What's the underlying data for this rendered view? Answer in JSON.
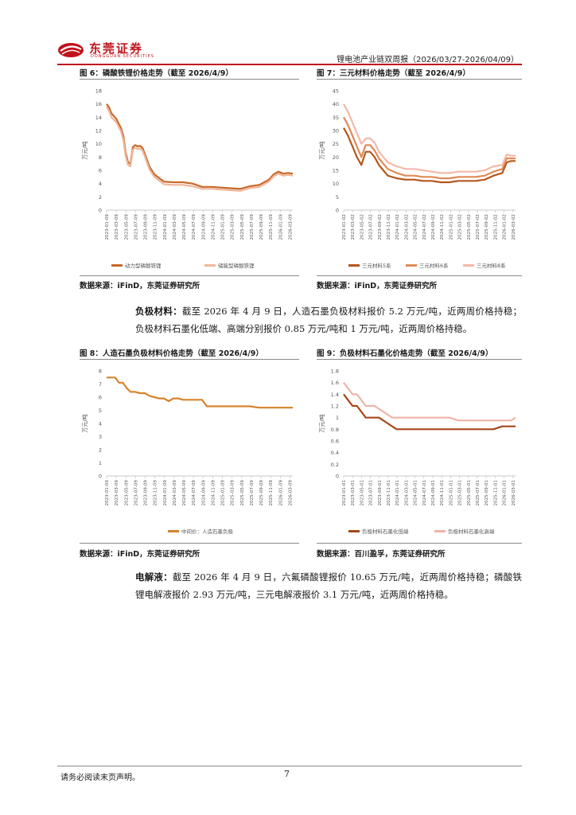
{
  "header": {
    "logo_cn": "东莞证券",
    "logo_en": "DONGGUAN SECURITIES",
    "report_title": "锂电池产业链双周报（2026/03/27-2026/04/09）",
    "accent_color": "#c0141c"
  },
  "figures": [
    {
      "title": "图 6：磷酸铁锂价格走势（截至 2026/4/9）",
      "source": "数据来源：iFinD，东莞证券研究所",
      "chart_data": {
        "type": "line",
        "ylabel": "万元/吨",
        "ylim": [
          0,
          18
        ],
        "yticks": [
          0,
          2,
          4,
          6,
          8,
          10,
          12,
          14,
          16,
          18
        ],
        "xtick_labels": [
          "2023-01-09",
          "2023-03-09",
          "2023-05-09",
          "2023-07-09",
          "2023-09-09",
          "2023-11-09",
          "2024-01-09",
          "2024-03-09",
          "2024-05-09",
          "2024-07-09",
          "2024-09-09",
          "2024-11-09",
          "2025-01-09",
          "2025-03-09",
          "2025-05-09",
          "2025-07-09",
          "2025-09-09",
          "2025-11-09",
          "2026-01-09",
          "2026-03-09"
        ],
        "xmax": 39,
        "series": [
          {
            "name": "动力型磷酸铁锂",
            "color": "#c8682a",
            "x": [
              0,
              0.5,
              1,
              2,
              3,
              3.5,
              4,
              4.5,
              5,
              5.5,
              6,
              6.5,
              7,
              7.5,
              8,
              9,
              10,
              12,
              14,
              16,
              18,
              20,
              22,
              24,
              26,
              28,
              30,
              32,
              34,
              35,
              36,
              37,
              38,
              39
            ],
            "y": [
              16,
              15.5,
              14.6,
              13.8,
              12.4,
              11.2,
              8.6,
              7.2,
              7.0,
              9.5,
              9.8,
              9.6,
              9.7,
              9.4,
              8.5,
              6.5,
              5.4,
              4.3,
              4.2,
              4.2,
              4.0,
              3.5,
              3.5,
              3.4,
              3.3,
              3.2,
              3.6,
              3.8,
              4.6,
              5.4,
              5.8,
              5.5,
              5.6,
              5.5
            ]
          },
          {
            "name": "储能型磷酸铁锂",
            "color": "#f0b79a",
            "x": [
              0,
              0.5,
              1,
              2,
              3,
              3.5,
              4,
              4.5,
              5,
              5.5,
              6,
              6.5,
              7,
              7.5,
              8,
              9,
              10,
              12,
              14,
              16,
              18,
              20,
              22,
              24,
              26,
              28,
              30,
              32,
              34,
              35,
              36,
              37,
              38,
              39
            ],
            "y": [
              15.6,
              15.0,
              14.0,
              13.3,
              11.9,
              10.6,
              8.1,
              6.8,
              6.6,
              9.1,
              9.4,
              9.2,
              9.3,
              9.0,
              8.1,
              6.1,
              5.0,
              3.9,
              3.8,
              3.8,
              3.6,
              3.2,
              3.2,
              3.1,
              3.0,
              2.9,
              3.3,
              3.5,
              4.3,
              5.1,
              5.5,
              5.2,
              5.3,
              5.2
            ]
          }
        ],
        "legend_position": "bottom"
      }
    },
    {
      "title": "图 7：三元材料价格走势（截至 2026/4/9）",
      "source": "数据来源：iFinD，东莞证券研究所",
      "chart_data": {
        "type": "line",
        "ylabel": "万元/吨",
        "ylim": [
          0,
          45
        ],
        "yticks": [
          0,
          5,
          10,
          15,
          20,
          25,
          30,
          35,
          40,
          45
        ],
        "xtick_labels": [
          "2023-01-02",
          "2023-03-02",
          "2023-05-02",
          "2023-07-02",
          "2023-09-02",
          "2023-11-02",
          "2024-01-02",
          "2024-03-02",
          "2024-05-02",
          "2024-07-02",
          "2024-09-02",
          "2024-11-02",
          "2025-01-02",
          "2025-03-02",
          "2025-05-02",
          "2025-07-02",
          "2025-09-02",
          "2025-11-02",
          "2026-01-02",
          "2026-03-02"
        ],
        "xmax": 39,
        "series": [
          {
            "name": "三元材料5系",
            "color": "#b5561c",
            "x": [
              0,
              1,
              2,
              3,
              4,
              5,
              6,
              7,
              8,
              9,
              10,
              12,
              14,
              16,
              18,
              20,
              22,
              24,
              26,
              28,
              30,
              32,
              34,
              36,
              37,
              38,
              39
            ],
            "y": [
              31,
              28,
              24,
              20,
              17,
              22,
              22,
              20,
              17,
              15,
              13,
              12,
              11.5,
              11.5,
              11,
              11,
              10.5,
              10.5,
              11,
              11,
              11,
              11.5,
              13,
              14,
              18,
              18.5,
              18.5
            ]
          },
          {
            "name": "三元材料6系",
            "color": "#e08a55",
            "x": [
              0,
              1,
              2,
              3,
              4,
              5,
              6,
              7,
              8,
              9,
              10,
              12,
              14,
              16,
              18,
              20,
              22,
              24,
              26,
              28,
              30,
              32,
              34,
              36,
              37,
              38,
              39
            ],
            "y": [
              35,
              32,
              28,
              24,
              20,
              24.5,
              24.5,
              22.5,
              19.5,
              17.5,
              15.5,
              14,
              13,
              13,
              12.5,
              12.5,
              12,
              12,
              12.5,
              12.5,
              12.5,
              13,
              14.5,
              15.5,
              19.5,
              19.5,
              19.5
            ]
          },
          {
            "name": "三元材料8系",
            "color": "#f4b8a8",
            "x": [
              0,
              1,
              2,
              3,
              4,
              5,
              6,
              7,
              8,
              9,
              10,
              12,
              14,
              16,
              18,
              20,
              22,
              24,
              26,
              28,
              30,
              32,
              34,
              36,
              37,
              38,
              39
            ],
            "y": [
              40,
              37,
              33,
              29,
              25,
              27,
              27,
              25.5,
              22,
              20,
              18,
              16.5,
              15.5,
              15.5,
              15,
              14.5,
              14,
              14,
              14.5,
              14.5,
              14.5,
              15,
              16.5,
              17,
              21,
              20.5,
              20.5
            ]
          }
        ],
        "legend_position": "bottom"
      }
    },
    {
      "title": "图 8：人造石墨负极材料价格走势（截至 2026/4/9）",
      "source": "数据来源：iFinD，东莞证券研究所",
      "chart_data": {
        "type": "line",
        "ylabel": "万元/吨",
        "ylim": [
          0,
          8
        ],
        "yticks": [
          0,
          1,
          2,
          3,
          4,
          5,
          6,
          7,
          8
        ],
        "xtick_labels": [
          "2023-01-09",
          "2023-03-09",
          "2023-05-09",
          "2023-07-09",
          "2023-09-09",
          "2023-11-09",
          "2024-01-09",
          "2024-03-09",
          "2024-05-09",
          "2024-07-09",
          "2024-09-09",
          "2024-11-09",
          "2025-01-09",
          "2025-03-09",
          "2025-05-09",
          "2025-07-09",
          "2025-09-09",
          "2025-11-09",
          "2026-01-09",
          "2026-03-09"
        ],
        "xmax": 39,
        "series": [
          {
            "name": "中间价：人造石墨负极",
            "color": "#d6832b",
            "x": [
              0,
              1,
              1.8,
              2.6,
              3.4,
              4.2,
              5,
              6,
              7,
              8,
              9,
              10,
              11,
              12,
              13,
              14,
              15,
              16,
              17,
              18,
              19,
              20,
              21,
              22,
              23,
              24,
              26,
              28,
              30,
              32,
              34,
              36,
              38,
              39
            ],
            "y": [
              7.5,
              7.5,
              7.5,
              7.1,
              7.1,
              6.7,
              6.4,
              6.4,
              6.3,
              6.3,
              6.1,
              6.0,
              5.9,
              5.9,
              5.7,
              5.9,
              5.9,
              5.8,
              5.8,
              5.8,
              5.8,
              5.8,
              5.3,
              5.3,
              5.3,
              5.3,
              5.3,
              5.3,
              5.3,
              5.2,
              5.2,
              5.2,
              5.2,
              5.2
            ]
          }
        ],
        "legend_position": "bottom"
      }
    },
    {
      "title": "图 9：负极材料石墨化价格走势（截至 2026/4/9）",
      "source": "数据来源：百川盈孚，东莞证券研究所",
      "chart_data": {
        "type": "line",
        "ylabel": "万元/吨",
        "ylim": [
          0,
          1.8
        ],
        "yticks": [
          0,
          0.2,
          0.4,
          0.6,
          0.8,
          1,
          1.2,
          1.4,
          1.6,
          1.8
        ],
        "xtick_labels": [
          "2023-01-01",
          "2023-03-01",
          "2023-05-01",
          "2023-07-01",
          "2023-09-01",
          "2023-11-01",
          "2024-01-01",
          "2024-03-01",
          "2024-05-01",
          "2024-07-01",
          "2024-09-01",
          "2024-11-01",
          "2025-01-01",
          "2025-03-01",
          "2025-05-01",
          "2025-07-01",
          "2025-09-01",
          "2025-11-01",
          "2026-01-01",
          "2026-03-01"
        ],
        "xmax": 39,
        "series": [
          {
            "name": "负极材料石墨化低端",
            "color": "#a6461c",
            "x": [
              0,
              1,
              2,
              3,
              4,
              5,
              6,
              7,
              8,
              9,
              10,
              11,
              12,
              14,
              16,
              18,
              20,
              22,
              24,
              26,
              28,
              30,
              32,
              34,
              36,
              38,
              39
            ],
            "y": [
              1.4,
              1.3,
              1.2,
              1.2,
              1.1,
              1.0,
              1.0,
              1.0,
              1.0,
              0.95,
              0.9,
              0.85,
              0.8,
              0.8,
              0.8,
              0.8,
              0.8,
              0.8,
              0.8,
              0.8,
              0.8,
              0.8,
              0.8,
              0.8,
              0.85,
              0.85,
              0.85
            ]
          },
          {
            "name": "负极材料石墨化高端",
            "color": "#f0b3a6",
            "x": [
              0,
              1,
              2,
              3,
              4,
              5,
              6,
              7,
              8,
              9,
              10,
              11,
              12,
              14,
              16,
              18,
              20,
              22,
              24,
              26,
              28,
              30,
              32,
              34,
              36,
              38,
              39
            ],
            "y": [
              1.6,
              1.5,
              1.4,
              1.4,
              1.3,
              1.2,
              1.2,
              1.2,
              1.15,
              1.1,
              1.05,
              1.0,
              1.0,
              1.0,
              1.0,
              1.0,
              1.0,
              1.0,
              1.0,
              0.95,
              0.95,
              0.95,
              0.95,
              0.95,
              0.95,
              0.95,
              1.0
            ]
          }
        ],
        "legend_position": "bottom"
      }
    }
  ],
  "paragraphs": {
    "anode": {
      "label": "负极材料：",
      "text": "截至 2026 年 4 月 9 日，人造石墨负极材料报价 5.2 万元/吨，近两周价格持稳；负极材料石墨化低端、高端分别报价 0.85 万元/吨和 1 万元/吨，近两周价格持稳。"
    },
    "electrolyte": {
      "label": "电解液：",
      "text": "截至 2026 年 4 月 9 日，六氟磷酸锂报价 10.65 万元/吨，近两周价格持稳；磷酸铁锂电解液报价 2.93 万元/吨，三元电解液报价 3.1 万元/吨，近两周价格持稳。"
    }
  },
  "footer": {
    "note": "请务必阅读末页声明。",
    "page_number": "7"
  }
}
